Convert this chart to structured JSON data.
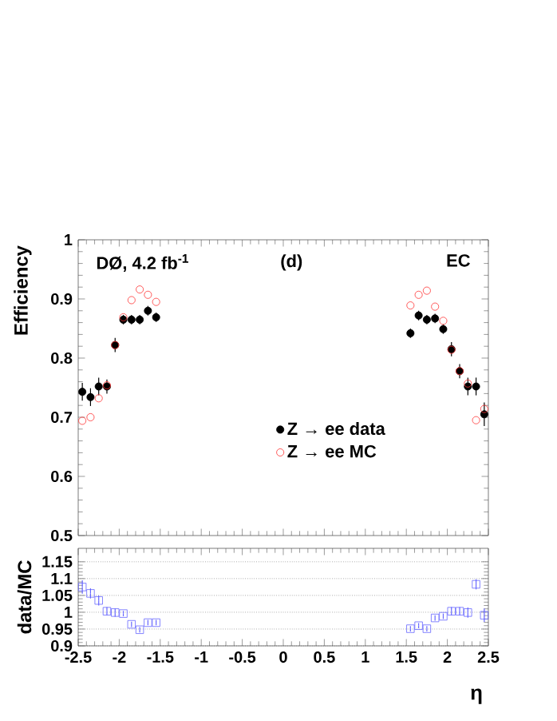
{
  "chart_data": [
    {
      "type": "scatter",
      "ylabel": "Efficiency",
      "annotations": [
        "DØ, 4.2 fb$^{-1}$",
        "(d)",
        "EC"
      ],
      "x": [
        -2.45,
        -2.35,
        -2.25,
        -2.15,
        -2.05,
        -1.95,
        -1.85,
        -1.75,
        -1.65,
        -1.55,
        1.55,
        1.65,
        1.75,
        1.85,
        1.95,
        2.05,
        2.15,
        2.25,
        2.35,
        2.45
      ],
      "series": [
        {
          "name": "Z → ee data",
          "color": "#000000",
          "marker": "circle",
          "values": [
            0.743,
            0.734,
            0.752,
            0.752,
            0.822,
            0.865,
            0.865,
            0.865,
            0.88,
            0.869,
            0.842,
            0.872,
            0.865,
            0.867,
            0.849,
            0.815,
            0.778,
            0.752,
            0.752,
            0.705
          ],
          "errors": [
            0.015,
            0.015,
            0.015,
            0.012,
            0.012,
            0.008,
            0.008,
            0.008,
            0.008,
            0.008,
            0.008,
            0.008,
            0.008,
            0.008,
            0.008,
            0.012,
            0.012,
            0.015,
            0.015,
            0.02
          ]
        },
        {
          "name": "Z → ee MC",
          "color": "#ff3333",
          "marker": "circle",
          "values": [
            0.694,
            0.7,
            0.732,
            0.754,
            0.822,
            0.869,
            0.898,
            0.916,
            0.907,
            0.895,
            0.889,
            0.907,
            0.914,
            0.887,
            0.863,
            0.814,
            0.778,
            0.757,
            0.695,
            0.714
          ]
        }
      ],
      "xlim": [
        -2.5,
        2.5
      ],
      "xticks": [
        -2.5,
        -2,
        -1.5,
        -1,
        -0.5,
        0,
        0.5,
        1,
        1.5,
        2,
        2.5
      ],
      "ylim": [
        0.5,
        1
      ],
      "yticks": [
        0.5,
        0.6,
        0.7,
        0.8,
        0.9,
        1
      ],
      "tick_labels": "y",
      "legend": "center"
    },
    {
      "type": "scatter",
      "ylabel": "data/MC",
      "xlabel": "η",
      "x": [
        -2.45,
        -2.35,
        -2.25,
        -2.15,
        -2.05,
        -1.95,
        -1.85,
        -1.75,
        -1.65,
        -1.55,
        1.55,
        1.65,
        1.75,
        1.85,
        1.95,
        2.05,
        2.15,
        2.25,
        2.35,
        2.45
      ],
      "series": [
        {
          "color": "#6666ff",
          "marker": "square",
          "values": [
            1.075,
            1.056,
            1.035,
            1.003,
            0.999,
            0.996,
            0.964,
            0.948,
            0.969,
            0.969,
            0.951,
            0.96,
            0.951,
            0.983,
            0.988,
            1.003,
            1.003,
            0.999,
            1.083,
            0.991
          ],
          "errors": [
            0.02,
            0.015,
            0.015,
            0.012,
            0.012,
            0.008,
            0.008,
            0.008,
            0.008,
            0.008,
            0.008,
            0.008,
            0.008,
            0.008,
            0.008,
            0.012,
            0.012,
            0.015,
            0.015,
            0.02
          ]
        }
      ],
      "xlim": [
        -2.5,
        2.5
      ],
      "xticks": [
        -2.5,
        -2,
        -1.5,
        -1,
        -0.5,
        0,
        0.5,
        1,
        1.5,
        2,
        2.5
      ],
      "ylim": [
        0.9,
        1.19
      ],
      "yticks": [
        0.9,
        0.95,
        1,
        1.05,
        1.1,
        1.15
      ],
      "grid": "y"
    }
  ]
}
